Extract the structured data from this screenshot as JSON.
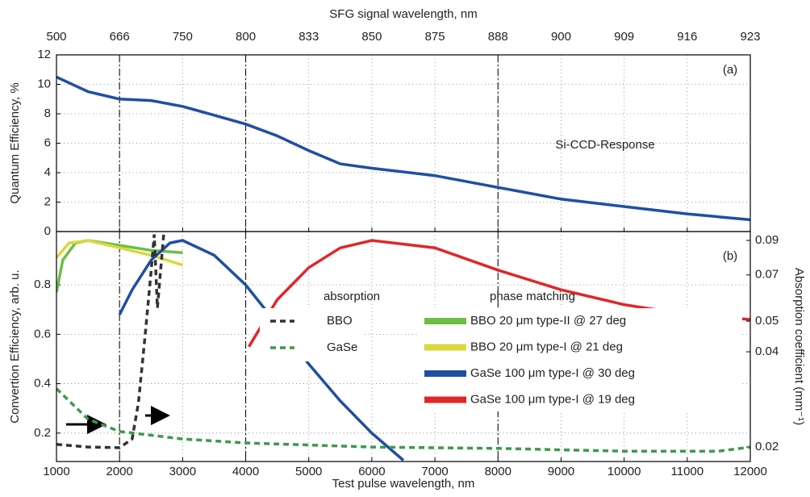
{
  "chart_data": [
    {
      "type": "line",
      "title": "SFG signal wavelength, nm",
      "ylabel": "Quantum Efficiency, %",
      "xlim": [
        1000,
        12000
      ],
      "xticks": [
        {
          "value": 1000,
          "label": "500"
        },
        {
          "value": 2000,
          "label": "666"
        },
        {
          "value": 3000,
          "label": "750"
        },
        {
          "value": 4000,
          "label": "800"
        },
        {
          "value": 5000,
          "label": "833"
        },
        {
          "value": 6000,
          "label": "850"
        },
        {
          "value": 7000,
          "label": "875"
        },
        {
          "value": 8000,
          "label": "888"
        },
        {
          "value": 9000,
          "label": "900"
        },
        {
          "value": 10000,
          "label": "909"
        },
        {
          "value": 11000,
          "label": "916"
        },
        {
          "value": 12000,
          "label": "923"
        }
      ],
      "ylim": [
        0,
        12
      ],
      "yticks": [
        0,
        2,
        4,
        6,
        8,
        10,
        12
      ],
      "grid": true,
      "vlines": [
        2000,
        4000,
        8000
      ],
      "annotations": [
        "(a)",
        "Si-CCD-Response"
      ],
      "series": [
        {
          "name": "Si-CCD-Response",
          "color": "#1f4fa3",
          "x": [
            1000,
            1500,
            2000,
            2500,
            3000,
            3500,
            4000,
            4500,
            5000,
            5500,
            6000,
            7000,
            8000,
            9000,
            10000,
            11000,
            12000
          ],
          "values": [
            10.5,
            9.5,
            9.0,
            8.9,
            8.5,
            7.9,
            7.3,
            6.5,
            5.5,
            4.6,
            4.3,
            3.8,
            3.0,
            2.2,
            1.7,
            1.2,
            0.8
          ]
        }
      ]
    },
    {
      "type": "line",
      "xlabel": "Test pulse wavelength, nm",
      "ylabel": "Convertion Efficiency, arb. u.",
      "y2label": "Absorption coefficient (mm⁻¹)",
      "xlim": [
        1000,
        12000
      ],
      "xticks": [
        1000,
        2000,
        3000,
        4000,
        5000,
        6000,
        7000,
        8000,
        9000,
        10000,
        11000,
        12000
      ],
      "ylim": [
        0.085,
        1.016
      ],
      "yticks": [
        0.2,
        0.4,
        0.6,
        0.8
      ],
      "y2lim": [
        0.018,
        0.096
      ],
      "y2ticks": [
        0.02,
        0.04,
        0.05,
        0.07,
        0.09
      ],
      "y2log": true,
      "grid": true,
      "vlines": [
        2000,
        4000,
        8000
      ],
      "annotations": [
        "(b)",
        "absorption",
        "phase matching"
      ],
      "series": [
        {
          "name": "BBO 20 μm type-II @ 27 deg",
          "color": "#6cbf45",
          "x": [
            1000,
            1100,
            1300,
            1500,
            2000,
            2500,
            3000
          ],
          "values": [
            0.77,
            0.9,
            0.97,
            0.98,
            0.96,
            0.94,
            0.93
          ]
        },
        {
          "name": "BBO 20 μm type-I @ 21 deg",
          "color": "#d9d93a",
          "x": [
            1000,
            1200,
            1500,
            2000,
            2500,
            3000
          ],
          "values": [
            0.91,
            0.97,
            0.98,
            0.95,
            0.92,
            0.88
          ]
        },
        {
          "name": "GaSe 100 μm type-I @ 30 deg",
          "color": "#1f4fa3",
          "x": [
            2000,
            2200,
            2500,
            2800,
            3000,
            3500,
            4000,
            4500,
            5000,
            5500,
            6000,
            6500
          ],
          "values": [
            0.68,
            0.78,
            0.9,
            0.97,
            0.98,
            0.92,
            0.8,
            0.64,
            0.48,
            0.33,
            0.2,
            0.09
          ]
        },
        {
          "name": "GaSe 100 μm type-I @ 19 deg",
          "color": "#e0262a",
          "x": [
            4050,
            4500,
            5000,
            5500,
            6000,
            7000,
            8000,
            9000,
            10000,
            11000,
            12000
          ],
          "values": [
            0.55,
            0.74,
            0.87,
            0.95,
            0.98,
            0.95,
            0.86,
            0.78,
            0.72,
            0.68,
            0.66
          ]
        },
        {
          "name": "BBO",
          "color": "#333333",
          "axis": "y2",
          "linestyle": "dashed",
          "x": [
            1000,
            1500,
            2000,
            2200,
            2300,
            2400,
            2500,
            2550,
            2600,
            2650,
            2700
          ],
          "values": [
            0.0204,
            0.02,
            0.0199,
            0.0212,
            0.0276,
            0.044,
            0.072,
            0.094,
            0.055,
            0.072,
            0.094
          ]
        },
        {
          "name": "GaSe",
          "color": "#3c9a4a",
          "axis": "y2",
          "linestyle": "dashed",
          "x": [
            1000,
            1500,
            2000,
            3000,
            4000,
            6000,
            8000,
            10000,
            11500,
            12000
          ],
          "values": [
            0.0306,
            0.0245,
            0.0224,
            0.0212,
            0.0206,
            0.02,
            0.0198,
            0.0194,
            0.0194,
            0.02
          ]
        }
      ]
    }
  ]
}
